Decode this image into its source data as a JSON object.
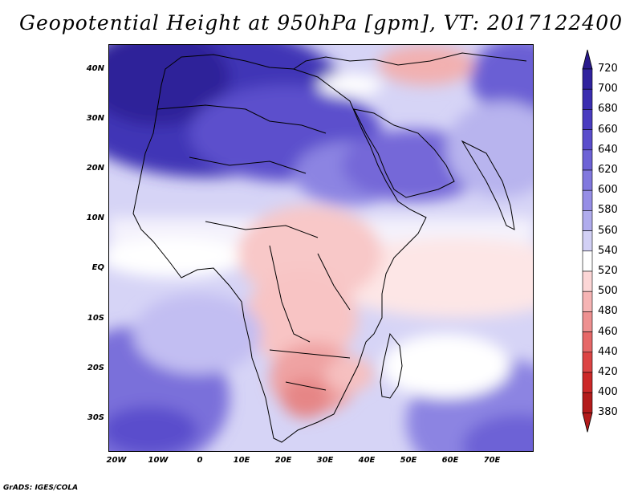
{
  "title": "Geopotential Height at 950hPa [gpm], VT: 2017122400",
  "footer": "GrADS: IGES/COLA",
  "map": {
    "lon_min": -22,
    "lon_max": 80,
    "lat_min": -37,
    "lat_max": 45,
    "lat_ticks": [
      "40N",
      "30N",
      "20N",
      "10N",
      "EQ",
      "10S",
      "20S",
      "30S"
    ],
    "lon_ticks": [
      "20W",
      "10W",
      "0",
      "10E",
      "20E",
      "30E",
      "40E",
      "50E",
      "60E",
      "70E"
    ]
  },
  "colorbar": {
    "levels": [
      "720",
      "700",
      "680",
      "660",
      "640",
      "620",
      "600",
      "580",
      "560",
      "540",
      "520",
      "500",
      "480",
      "460",
      "440",
      "420",
      "400",
      "380"
    ],
    "colors": [
      "#2a1a8c",
      "#30229e",
      "#3a2db0",
      "#4a3cc0",
      "#5a4dcc",
      "#6d62d6",
      "#8178de",
      "#968ee6",
      "#b0aced",
      "#d2d0f5",
      "#ffffff",
      "#fcd6d6",
      "#f6b4b4",
      "#ee9090",
      "#e66868",
      "#dc4444",
      "#cc2828",
      "#b31b1b"
    ]
  }
}
